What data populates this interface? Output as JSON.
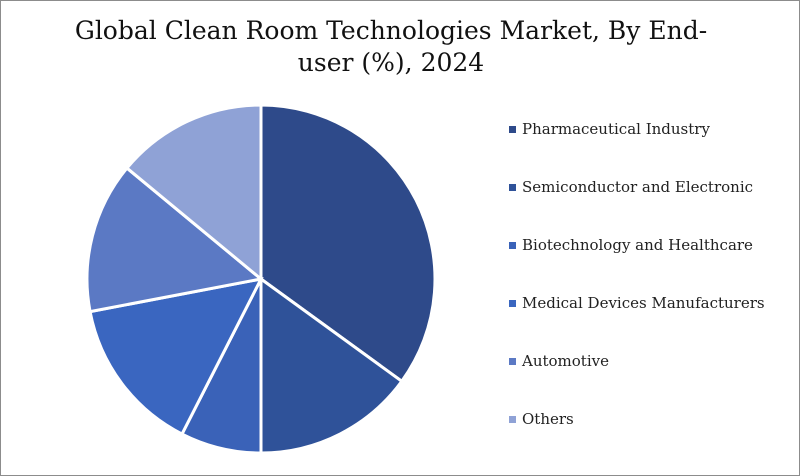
{
  "chart_data": {
    "type": "pie",
    "title": "Global Clean Room Technologies Market, By End-user (%), 2024",
    "categories": [
      "Pharmaceutical Industry",
      "Semiconductor and Electronic",
      "Biotechnology and Healthcare",
      "Medical Devices Manufacturers",
      "Automotive",
      "Others"
    ],
    "values": [
      35,
      15,
      7.5,
      14.5,
      14,
      14
    ],
    "colors": [
      "#2e4a8a",
      "#2f5299",
      "#3a62b8",
      "#3a66c0",
      "#5b79c4",
      "#8fa2d6"
    ],
    "legend_position": "right"
  },
  "title_lines": [
    "Global Clean Room Technologies Market, By End-",
    "user (%), 2024"
  ]
}
